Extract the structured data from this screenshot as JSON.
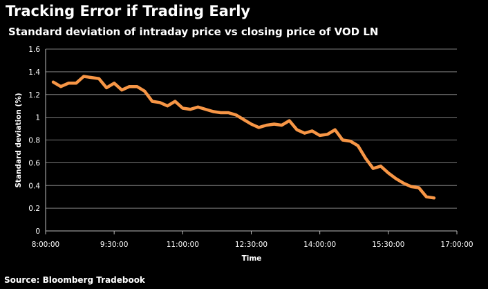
{
  "chart_data": {
    "type": "line",
    "title": "Tracking Error if Trading Early",
    "subtitle": "Standard deviation of intraday price vs closing price of VOD LN",
    "xlabel": "Time",
    "ylabel": "Standard deviation     (%)",
    "source": "Source: Bloomberg Tradebook",
    "color": "#F79646",
    "grid": true,
    "ylim": [
      0,
      1.6
    ],
    "yticks": [
      0,
      0.2,
      0.4,
      0.6,
      0.8,
      1,
      1.2,
      1.4,
      1.6
    ],
    "ytick_labels": [
      "0",
      "0.2",
      "0.4",
      "0.6",
      "0.8",
      "1",
      "1.2",
      "1.4",
      "1.6"
    ],
    "xlim": [
      "8:00:00",
      "17:00:00"
    ],
    "xticks": [
      "8:00:00",
      "9:30:00",
      "11:00:00",
      "12:30:00",
      "14:00:00",
      "15:30:00",
      "17:00:00"
    ],
    "series": [
      {
        "x": [
          "8:10:00",
          "8:20:00",
          "8:30:00",
          "8:40:00",
          "8:50:00",
          "9:00:00",
          "9:10:00",
          "9:20:00",
          "9:30:00",
          "9:40:00",
          "9:50:00",
          "10:00:00",
          "10:10:00",
          "10:20:00",
          "10:30:00",
          "10:40:00",
          "10:50:00",
          "11:00:00",
          "11:10:00",
          "11:20:00",
          "11:30:00",
          "11:40:00",
          "11:50:00",
          "12:00:00",
          "12:10:00",
          "12:20:00",
          "12:30:00",
          "12:40:00",
          "12:50:00",
          "13:00:00",
          "13:10:00",
          "13:20:00",
          "13:30:00",
          "13:40:00",
          "13:50:00",
          "14:00:00",
          "14:10:00",
          "14:20:00",
          "14:30:00",
          "14:40:00",
          "14:50:00",
          "15:00:00",
          "15:10:00",
          "15:20:00",
          "15:30:00",
          "15:40:00",
          "15:50:00",
          "16:00:00",
          "16:10:00",
          "16:20:00",
          "16:30:00"
        ],
        "values": [
          1.31,
          1.27,
          1.3,
          1.3,
          1.36,
          1.35,
          1.34,
          1.26,
          1.3,
          1.24,
          1.27,
          1.27,
          1.23,
          1.14,
          1.13,
          1.1,
          1.14,
          1.08,
          1.07,
          1.09,
          1.07,
          1.05,
          1.04,
          1.04,
          1.02,
          0.98,
          0.94,
          0.91,
          0.93,
          0.94,
          0.93,
          0.97,
          0.89,
          0.86,
          0.88,
          0.84,
          0.85,
          0.89,
          0.8,
          0.79,
          0.75,
          0.64,
          0.55,
          0.57,
          0.51,
          0.46,
          0.42,
          0.39,
          0.38,
          0.3,
          0.29
        ]
      }
    ]
  }
}
